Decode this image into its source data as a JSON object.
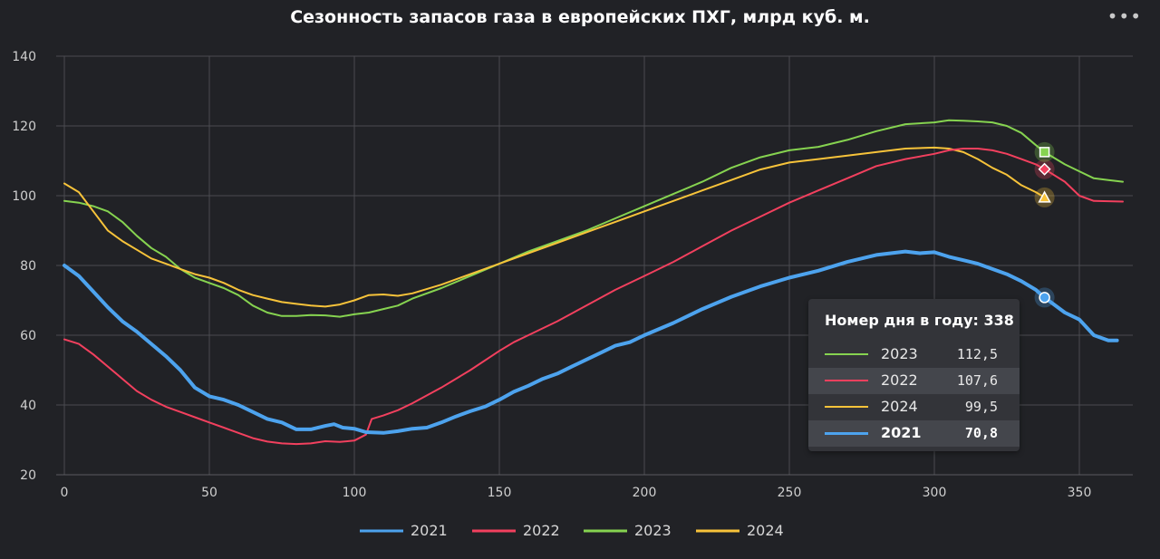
{
  "menu_icon": "more-horizontal-icon",
  "chart_data": {
    "type": "line",
    "title": "Сезонность запасов газа в европейских ПХГ, млрд куб. м.",
    "xlabel": "",
    "ylabel": "",
    "xlim": [
      0,
      365
    ],
    "ylim": [
      20,
      140
    ],
    "xticks": [
      "0",
      "50",
      "100",
      "150",
      "200",
      "250",
      "300",
      "350"
    ],
    "yticks": [
      "20",
      "40",
      "60",
      "80",
      "100",
      "120",
      "140"
    ],
    "grid": true,
    "legend_position": "bottom",
    "series": [
      {
        "name": "2021",
        "color": "#4da3ee",
        "marker": "circle",
        "points": [
          [
            0,
            80
          ],
          [
            5,
            77
          ],
          [
            10,
            72.5
          ],
          [
            15,
            68
          ],
          [
            20,
            64
          ],
          [
            25,
            61
          ],
          [
            30,
            57.5
          ],
          [
            35,
            54
          ],
          [
            40,
            50
          ],
          [
            45,
            45
          ],
          [
            50,
            42.5
          ],
          [
            55,
            41.5
          ],
          [
            60,
            40
          ],
          [
            65,
            38
          ],
          [
            70,
            36
          ],
          [
            75,
            35
          ],
          [
            80,
            33
          ],
          [
            85,
            33
          ],
          [
            90,
            34
          ],
          [
            93,
            34.5
          ],
          [
            96,
            33.5
          ],
          [
            100,
            33.2
          ],
          [
            104,
            32.2
          ],
          [
            110,
            32
          ],
          [
            115,
            32.5
          ],
          [
            120,
            33.2
          ],
          [
            125,
            33.5
          ],
          [
            130,
            35
          ],
          [
            135,
            36.7
          ],
          [
            140,
            38.2
          ],
          [
            145,
            39.5
          ],
          [
            150,
            41.5
          ],
          [
            155,
            43.8
          ],
          [
            160,
            45.5
          ],
          [
            165,
            47.5
          ],
          [
            170,
            49
          ],
          [
            175,
            51
          ],
          [
            180,
            53
          ],
          [
            185,
            55
          ],
          [
            190,
            57
          ],
          [
            195,
            58
          ],
          [
            200,
            60
          ],
          [
            210,
            63.5
          ],
          [
            220,
            67.5
          ],
          [
            230,
            71
          ],
          [
            240,
            74
          ],
          [
            250,
            76.5
          ],
          [
            260,
            78.5
          ],
          [
            270,
            81
          ],
          [
            280,
            83
          ],
          [
            290,
            84
          ],
          [
            295,
            83.5
          ],
          [
            300,
            83.8
          ],
          [
            305,
            82.5
          ],
          [
            310,
            81.5
          ],
          [
            315,
            80.5
          ],
          [
            320,
            79
          ],
          [
            325,
            77.5
          ],
          [
            330,
            75.5
          ],
          [
            335,
            73
          ],
          [
            338,
            70.8
          ],
          [
            345,
            66.5
          ],
          [
            350,
            64.5
          ],
          [
            355,
            60
          ],
          [
            360,
            58.5
          ],
          [
            363,
            58.5
          ]
        ]
      },
      {
        "name": "2022",
        "color": "#f2405e",
        "marker": "diamond",
        "points": [
          [
            0,
            58.8
          ],
          [
            5,
            57.5
          ],
          [
            10,
            54.5
          ],
          [
            15,
            51
          ],
          [
            20,
            47.5
          ],
          [
            25,
            44
          ],
          [
            30,
            41.5
          ],
          [
            35,
            39.5
          ],
          [
            40,
            38
          ],
          [
            45,
            36.5
          ],
          [
            50,
            35
          ],
          [
            55,
            33.5
          ],
          [
            60,
            32
          ],
          [
            65,
            30.5
          ],
          [
            70,
            29.5
          ],
          [
            75,
            29
          ],
          [
            80,
            28.8
          ],
          [
            85,
            29
          ],
          [
            90,
            29.6
          ],
          [
            95,
            29.4
          ],
          [
            100,
            29.8
          ],
          [
            104,
            31.5
          ],
          [
            106,
            36
          ],
          [
            110,
            37
          ],
          [
            115,
            38.5
          ],
          [
            120,
            40.5
          ],
          [
            130,
            45
          ],
          [
            140,
            50
          ],
          [
            150,
            55.5
          ],
          [
            155,
            58
          ],
          [
            160,
            60
          ],
          [
            170,
            64
          ],
          [
            180,
            68.5
          ],
          [
            190,
            73
          ],
          [
            200,
            77
          ],
          [
            210,
            81
          ],
          [
            220,
            85.5
          ],
          [
            230,
            90
          ],
          [
            240,
            94
          ],
          [
            250,
            98
          ],
          [
            260,
            101.5
          ],
          [
            270,
            105
          ],
          [
            280,
            108.5
          ],
          [
            290,
            110.5
          ],
          [
            300,
            112
          ],
          [
            305,
            113
          ],
          [
            310,
            113.5
          ],
          [
            315,
            113.5
          ],
          [
            320,
            113
          ],
          [
            325,
            112
          ],
          [
            330,
            110.5
          ],
          [
            335,
            109
          ],
          [
            338,
            107.6
          ],
          [
            345,
            104
          ],
          [
            350,
            100
          ],
          [
            355,
            98.5
          ],
          [
            365,
            98.3
          ]
        ]
      },
      {
        "name": "2023",
        "color": "#86d350",
        "marker": "square",
        "points": [
          [
            0,
            98.5
          ],
          [
            5,
            98
          ],
          [
            10,
            97
          ],
          [
            15,
            95.5
          ],
          [
            20,
            92.5
          ],
          [
            25,
            88.5
          ],
          [
            30,
            85
          ],
          [
            35,
            82.5
          ],
          [
            40,
            79
          ],
          [
            45,
            76.5
          ],
          [
            50,
            75
          ],
          [
            55,
            73.5
          ],
          [
            60,
            71.5
          ],
          [
            65,
            68.5
          ],
          [
            70,
            66.5
          ],
          [
            75,
            65.5
          ],
          [
            80,
            65.5
          ],
          [
            85,
            65.8
          ],
          [
            90,
            65.7
          ],
          [
            95,
            65.3
          ],
          [
            100,
            66
          ],
          [
            105,
            66.5
          ],
          [
            110,
            67.5
          ],
          [
            115,
            68.5
          ],
          [
            120,
            70.5
          ],
          [
            130,
            73.5
          ],
          [
            140,
            77
          ],
          [
            150,
            80.5
          ],
          [
            160,
            84
          ],
          [
            170,
            87
          ],
          [
            180,
            90
          ],
          [
            190,
            93.5
          ],
          [
            200,
            97
          ],
          [
            210,
            100.5
          ],
          [
            220,
            104
          ],
          [
            230,
            108
          ],
          [
            240,
            111
          ],
          [
            250,
            113
          ],
          [
            260,
            114
          ],
          [
            270,
            116
          ],
          [
            280,
            118.5
          ],
          [
            290,
            120.5
          ],
          [
            300,
            121
          ],
          [
            305,
            121.6
          ],
          [
            310,
            121.5
          ],
          [
            315,
            121.3
          ],
          [
            320,
            121
          ],
          [
            325,
            120
          ],
          [
            330,
            118
          ],
          [
            335,
            114.5
          ],
          [
            338,
            112.5
          ],
          [
            345,
            109
          ],
          [
            350,
            107
          ],
          [
            355,
            105
          ],
          [
            360,
            104.5
          ],
          [
            365,
            104
          ]
        ]
      },
      {
        "name": "2024",
        "color": "#f7c33a",
        "marker": "triangle",
        "points": [
          [
            0,
            103.5
          ],
          [
            5,
            101
          ],
          [
            10,
            95.5
          ],
          [
            15,
            90
          ],
          [
            20,
            87
          ],
          [
            25,
            84.5
          ],
          [
            30,
            82
          ],
          [
            35,
            80.5
          ],
          [
            40,
            79
          ],
          [
            45,
            77.5
          ],
          [
            50,
            76.5
          ],
          [
            55,
            75
          ],
          [
            60,
            73
          ],
          [
            65,
            71.5
          ],
          [
            70,
            70.5
          ],
          [
            75,
            69.5
          ],
          [
            80,
            69
          ],
          [
            85,
            68.5
          ],
          [
            90,
            68.2
          ],
          [
            95,
            68.8
          ],
          [
            100,
            70
          ],
          [
            105,
            71.5
          ],
          [
            110,
            71.7
          ],
          [
            115,
            71.3
          ],
          [
            120,
            72
          ],
          [
            130,
            74.5
          ],
          [
            140,
            77.5
          ],
          [
            150,
            80.5
          ],
          [
            160,
            83.5
          ],
          [
            170,
            86.5
          ],
          [
            180,
            89.5
          ],
          [
            190,
            92.5
          ],
          [
            200,
            95.5
          ],
          [
            210,
            98.5
          ],
          [
            220,
            101.5
          ],
          [
            230,
            104.5
          ],
          [
            240,
            107.5
          ],
          [
            250,
            109.5
          ],
          [
            260,
            110.5
          ],
          [
            270,
            111.5
          ],
          [
            280,
            112.5
          ],
          [
            290,
            113.5
          ],
          [
            300,
            113.8
          ],
          [
            305,
            113.5
          ],
          [
            310,
            112.5
          ],
          [
            315,
            110.5
          ],
          [
            320,
            108
          ],
          [
            325,
            106
          ],
          [
            330,
            103
          ],
          [
            335,
            101
          ],
          [
            338,
            99.5
          ]
        ]
      }
    ]
  },
  "tooltip": {
    "header": "Номер дня в году: 338",
    "rows": [
      {
        "name": "2023",
        "value": "112,5",
        "color": "#86d350"
      },
      {
        "name": "2022",
        "value": "107,6",
        "color": "#f2405e"
      },
      {
        "name": "2024",
        "value": "99,5",
        "color": "#f7c33a"
      },
      {
        "name": "2021",
        "value": "70,8",
        "color": "#4da3ee"
      }
    ]
  },
  "hover_x": 338
}
